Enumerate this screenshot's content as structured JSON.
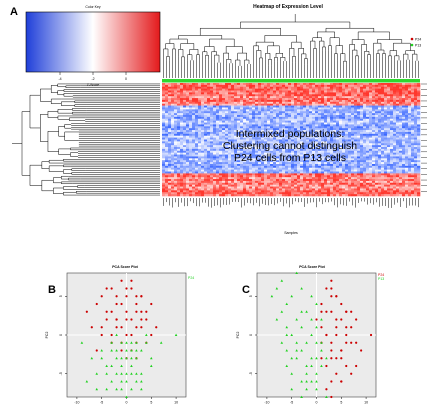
{
  "panel_labels": {
    "a": "A",
    "b": "B",
    "c": "C"
  },
  "heatmap": {
    "title": "Heatmap of Expression Level",
    "color_key": {
      "title": "Color Key",
      "ticks": [
        "-4",
        "-2",
        "0"
      ],
      "xlabel": "Z-Score"
    },
    "legend": {
      "items": [
        "P24",
        "P13"
      ]
    },
    "xlabel": "Samples",
    "annotation": [
      "Intermixed populations:",
      "Clustering cannot distinguish",
      "P24 cells from P13 cells"
    ],
    "colors": {
      "low": "#1f3fd9",
      "mid": "#ffffff",
      "high": "#e31a1c"
    }
  },
  "chart_data": [
    {
      "type": "scatter",
      "title": "PCA Score Plot",
      "xlabel": "",
      "ylabel": "PC2",
      "legend": [
        "P24",
        "P13"
      ],
      "xlim": [
        -12,
        12
      ],
      "ylim": [
        -8,
        8
      ],
      "xticks": [
        "-10",
        "-5",
        "0",
        "5",
        "10"
      ],
      "yticks": [
        "5",
        "0",
        "-5"
      ],
      "grid": true,
      "series": [
        {
          "name": "P24",
          "color": "#cc0000",
          "x": [
            -8,
            -6,
            -5,
            -4,
            -3,
            -3,
            -2,
            -2,
            -1,
            -1,
            0,
            0,
            1,
            1,
            2,
            2,
            3,
            3,
            4,
            5,
            -7,
            -5,
            -4,
            -2,
            -1,
            0,
            1,
            2,
            3,
            4,
            6,
            -6,
            -3,
            -1,
            0,
            2,
            3,
            5,
            -4,
            -2,
            0,
            1,
            3,
            -5,
            -3,
            -1,
            1,
            2,
            4,
            -2,
            0,
            2
          ],
          "y": [
            3,
            4,
            5,
            2,
            6,
            3,
            5,
            2,
            4,
            7,
            3,
            5,
            2,
            6,
            4,
            1,
            5,
            3,
            2,
            4,
            1,
            0,
            3,
            1,
            -1,
            2,
            0,
            3,
            1,
            -1,
            1,
            -2,
            0,
            1,
            -3,
            -1,
            2,
            0,
            6,
            4,
            6,
            7,
            5,
            1,
            -1,
            -2,
            -2,
            -3,
            3,
            2,
            0,
            5
          ]
        },
        {
          "name": "P13",
          "color": "#1fd11f",
          "x": [
            -9,
            -7,
            -6,
            -5,
            -4,
            -3,
            -2,
            -1,
            0,
            1,
            2,
            3,
            4,
            5,
            -6,
            -4,
            -3,
            -2,
            -1,
            0,
            1,
            2,
            3,
            5,
            -5,
            -3,
            -2,
            -1,
            0,
            1,
            2,
            4,
            -4,
            -2,
            -1,
            0,
            1,
            3,
            -3,
            -1,
            0,
            2,
            7,
            10,
            -8,
            -2,
            0,
            1,
            3,
            -1,
            1,
            2
          ],
          "y": [
            -1,
            -3,
            -5,
            -2,
            -4,
            -6,
            -3,
            -5,
            -2,
            -4,
            -3,
            -6,
            -1,
            -3,
            -7,
            -7,
            -2,
            -5,
            -1,
            -6,
            -7,
            -5,
            -2,
            -4,
            -3,
            -1,
            -7,
            -3,
            -5,
            -1,
            -6,
            0,
            -5,
            -2,
            -4,
            -1,
            -3,
            -7,
            -4,
            -6,
            -3,
            -2,
            -1,
            0,
            -6,
            0,
            -8,
            -5,
            -5,
            -7,
            -2,
            -1
          ]
        }
      ]
    },
    {
      "type": "scatter",
      "title": "PCA Score Plot",
      "xlabel": "",
      "ylabel": "PC2",
      "legend": [
        "P24",
        "P13"
      ],
      "xlim": [
        -12,
        12
      ],
      "ylim": [
        -8,
        8
      ],
      "xticks": [
        "-10",
        "-5",
        "0",
        "5",
        "10"
      ],
      "yticks": [
        "5",
        "0",
        "-5"
      ],
      "grid": true,
      "series": [
        {
          "name": "P24",
          "color": "#cc0000",
          "x": [
            1,
            2,
            3,
            4,
            5,
            6,
            7,
            8,
            2,
            3,
            4,
            5,
            6,
            7,
            1,
            2,
            3,
            4,
            5,
            6,
            8,
            9,
            0,
            1,
            3,
            4,
            5,
            7,
            2,
            3,
            4,
            6,
            8,
            1,
            3,
            5,
            6,
            4,
            2,
            3,
            5,
            11,
            3,
            4,
            6,
            1,
            2,
            7,
            5,
            3
          ],
          "y": [
            4,
            3,
            5,
            2,
            4,
            3,
            1,
            2,
            0,
            -1,
            1,
            -2,
            0,
            -1,
            -3,
            -4,
            -2,
            -5,
            -3,
            -1,
            -4,
            -2,
            2,
            1,
            -6,
            -3,
            2,
            3,
            6,
            7,
            5,
            1,
            -1,
            -1,
            3,
            -6,
            -4,
            0,
            -7,
            -8,
            -2,
            0,
            6,
            5,
            3,
            3,
            0,
            -5,
            -6,
            -3
          ]
        },
        {
          "name": "P13",
          "color": "#1fd11f",
          "x": [
            -9,
            -8,
            -7,
            -6,
            -5,
            -4,
            -3,
            -2,
            -1,
            0,
            1,
            -8,
            -7,
            -6,
            -5,
            -4,
            -3,
            -2,
            -1,
            0,
            -7,
            -6,
            -5,
            -4,
            -3,
            -2,
            -1,
            0,
            1,
            -6,
            -5,
            -4,
            -3,
            -2,
            -1,
            0,
            -5,
            -4,
            -3,
            -2,
            -1,
            0,
            1,
            2,
            -3,
            -1,
            0,
            1,
            -2,
            0,
            2,
            -6
          ],
          "y": [
            5,
            6,
            7,
            4,
            5,
            8,
            6,
            3,
            5,
            4,
            2,
            2,
            3,
            1,
            0,
            2,
            1,
            -1,
            0,
            1,
            -1,
            -2,
            -3,
            -1,
            -2,
            -4,
            -3,
            -1,
            -2,
            -4,
            -5,
            -3,
            -6,
            -5,
            -4,
            -6,
            -7,
            -2,
            -8,
            -7,
            -6,
            -7,
            -4,
            -8,
            3,
            2,
            -3,
            -1,
            -6,
            -5,
            -3,
            0
          ]
        }
      ]
    }
  ]
}
